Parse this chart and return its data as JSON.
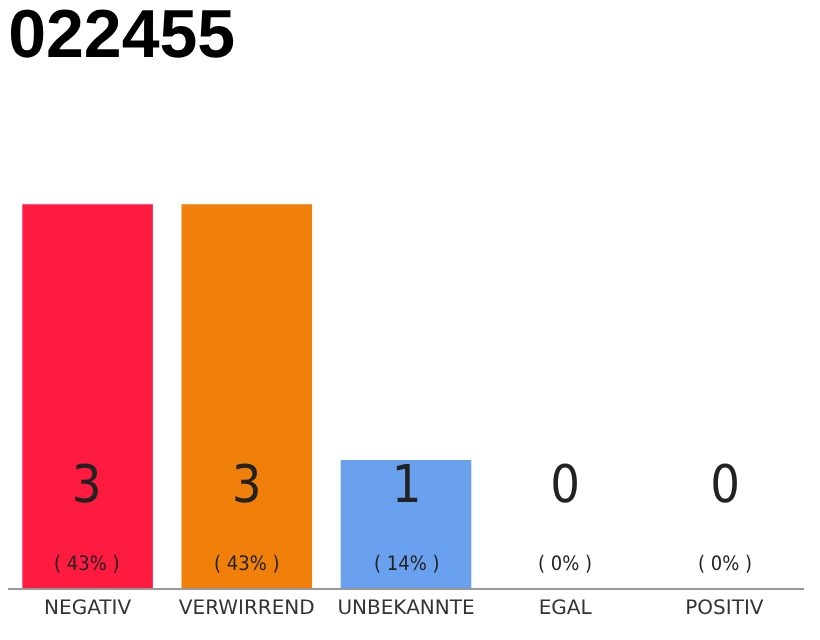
{
  "chart_data": {
    "type": "bar",
    "title": "022455",
    "categories": [
      "NEGATIV",
      "VERWIRREND",
      "UNBEKANNTE",
      "EGAL",
      "POSITIV"
    ],
    "values": [
      3,
      3,
      1,
      0,
      0
    ],
    "colors": [
      "#ff1a40",
      "#f0800a",
      "#6aa1ef",
      "#d9d9d9",
      "#d9d9d9"
    ],
    "value_labels": [
      "3\n( 43% )",
      "3\n( 43% )",
      "1\n( 14% )",
      "0\n( 0% )",
      "0\n( 0% )"
    ],
    "grid": false,
    "legend": false
  }
}
